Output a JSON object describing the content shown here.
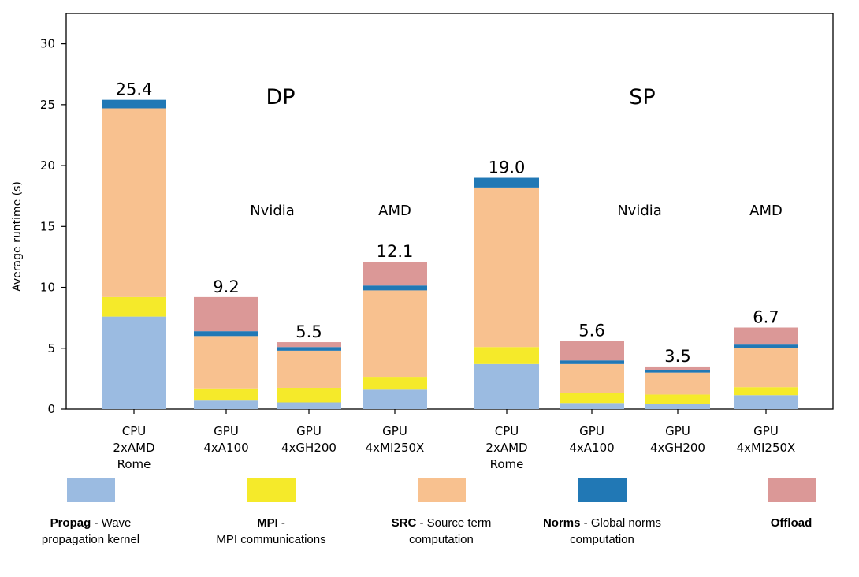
{
  "chart_data": {
    "type": "bar",
    "stacked": true,
    "ylabel": "Average runtime (s)",
    "ylim": [
      0,
      32.5
    ],
    "yticks": [
      0,
      5,
      10,
      15,
      20,
      25,
      30
    ],
    "groups": [
      {
        "label": "DP",
        "vendor_labels": [
          {
            "text": "Nvidia",
            "over": [
              1,
              2
            ]
          },
          {
            "text": "AMD",
            "over": [
              3
            ]
          }
        ]
      },
      {
        "label": "SP",
        "vendor_labels": [
          {
            "text": "Nvidia",
            "over": [
              5,
              6
            ]
          },
          {
            "text": "AMD",
            "over": [
              7
            ]
          }
        ]
      }
    ],
    "categories": [
      [
        "CPU",
        "2xAMD",
        "Rome"
      ],
      [
        "GPU",
        "4xA100"
      ],
      [
        "GPU",
        "4xGH200"
      ],
      [
        "GPU",
        "4xMI250X"
      ],
      [
        "CPU",
        "2xAMD",
        "Rome"
      ],
      [
        "GPU",
        "4xA100"
      ],
      [
        "GPU",
        "4xGH200"
      ],
      [
        "GPU",
        "4xMI250X"
      ]
    ],
    "totals": [
      "25.4",
      "9.2",
      "5.5",
      "12.1",
      "19.0",
      "5.6",
      "3.5",
      "6.7"
    ],
    "series": [
      {
        "key": "propag",
        "name": "Propag",
        "color": "#9bbbe1",
        "values": [
          7.6,
          0.7,
          0.55,
          1.6,
          3.7,
          0.5,
          0.4,
          1.15
        ]
      },
      {
        "key": "mpi",
        "name": "MPI",
        "color": "#f5ea2a",
        "values": [
          1.6,
          1.0,
          1.2,
          1.05,
          1.4,
          0.8,
          0.8,
          0.65
        ]
      },
      {
        "key": "src",
        "name": "SRC",
        "color": "#f8c18f",
        "values": [
          15.5,
          4.3,
          3.05,
          7.1,
          13.1,
          2.4,
          1.8,
          3.2
        ]
      },
      {
        "key": "norms",
        "name": "Norms",
        "color": "#2178b5",
        "values": [
          0.7,
          0.4,
          0.3,
          0.4,
          0.8,
          0.3,
          0.2,
          0.3
        ]
      },
      {
        "key": "offload",
        "name": "Offload",
        "color": "#db9897",
        "values": [
          0.0,
          2.8,
          0.4,
          1.95,
          0.0,
          1.6,
          0.3,
          1.4
        ]
      }
    ]
  },
  "legend": [
    {
      "key": "propag",
      "bold": "Propag",
      "rest": " - Wave",
      "line2": "propagation kernel",
      "line2_bold": false
    },
    {
      "key": "mpi",
      "bold": "MPI",
      "rest": " -",
      "line2": "MPI communications",
      "line2_bold": false
    },
    {
      "key": "src",
      "bold": "SRC",
      "rest": " - Source term",
      "line2": "computation",
      "line2_bold": false
    },
    {
      "key": "norms",
      "bold": "Norms",
      "rest": " - Global norms",
      "line2": "computation",
      "line2_bold": false
    },
    {
      "key": "offload",
      "bold": "Offload",
      "rest": "",
      "line2": "",
      "line2_bold": false
    }
  ]
}
